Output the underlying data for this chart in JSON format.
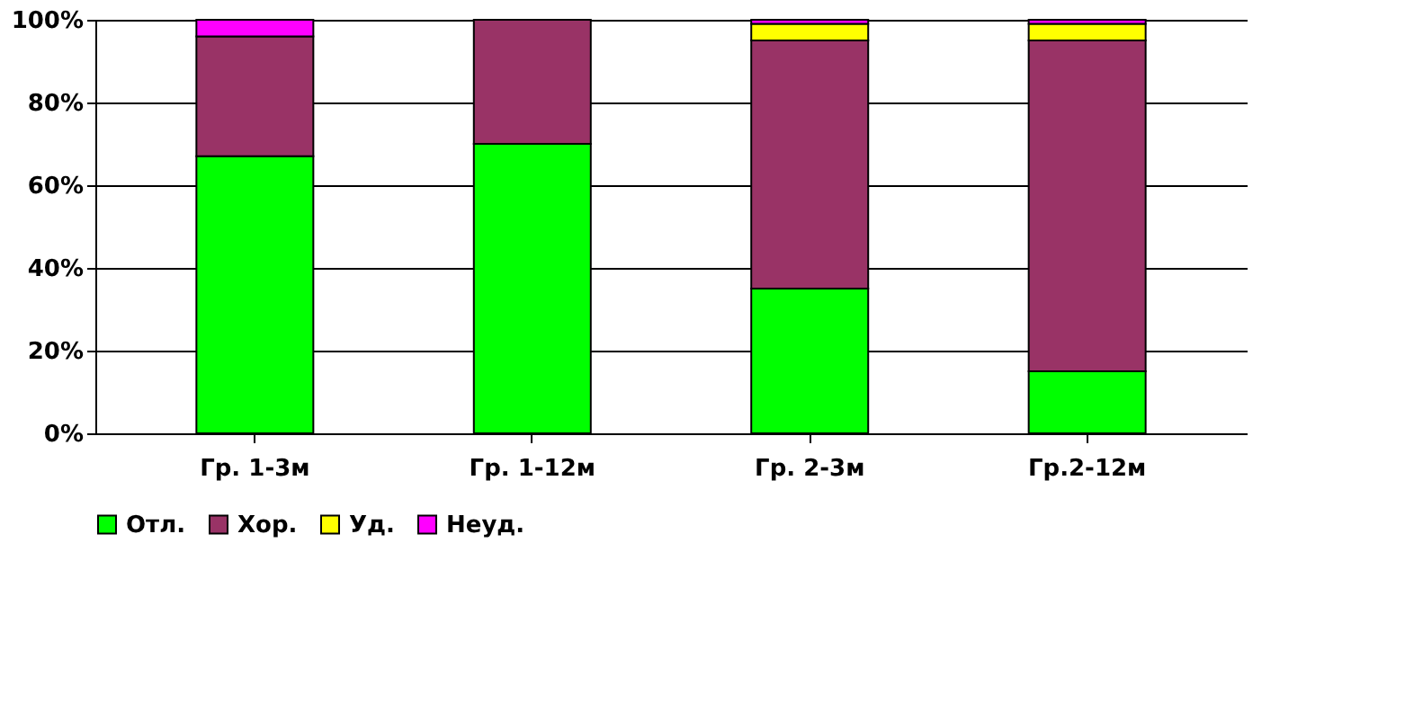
{
  "chart_data": {
    "type": "bar",
    "stacked": true,
    "categories": [
      "Гр. 1-3м",
      "Гр. 1-12м",
      "Гр. 2-3м",
      "Гр.2-12м"
    ],
    "series": [
      {
        "name": "Отл.",
        "color": "#00ff00",
        "values": [
          67,
          70,
          35,
          15
        ]
      },
      {
        "name": "Хор.",
        "color": "#993366",
        "values": [
          29,
          30,
          60,
          80
        ]
      },
      {
        "name": "Уд.",
        "color": "#ffff00",
        "values": [
          0,
          0,
          4,
          4
        ]
      },
      {
        "name": "Неуд.",
        "color": "#ff00ff",
        "values": [
          4,
          0,
          1,
          1
        ]
      }
    ],
    "ylim": [
      0,
      100
    ],
    "yticks": [
      {
        "value": 0,
        "label": "0%"
      },
      {
        "value": 20,
        "label": "20%"
      },
      {
        "value": 40,
        "label": "40%"
      },
      {
        "value": 60,
        "label": "60%"
      },
      {
        "value": 80,
        "label": "80%"
      },
      {
        "value": 100,
        "label": "100%"
      }
    ],
    "grid": "y",
    "legend": "bottom"
  }
}
